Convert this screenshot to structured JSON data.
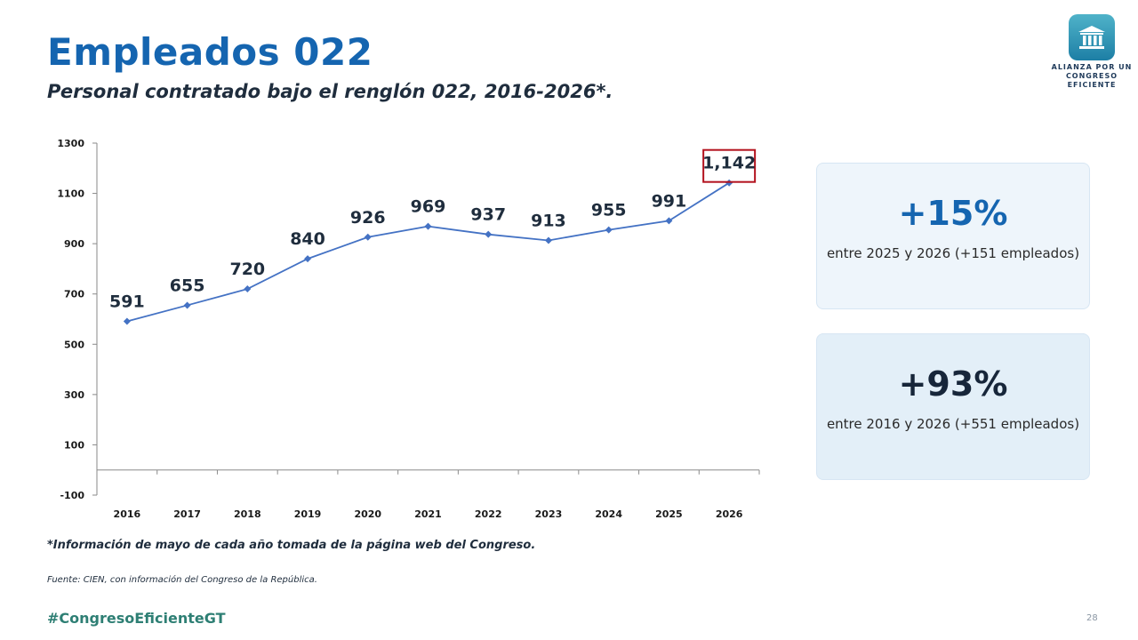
{
  "header": {
    "title": "Empleados 022",
    "subtitle": "Personal contratado bajo el renglón 022, 2016-2026*."
  },
  "logo": {
    "line1": "ALIANZA POR UN",
    "line2": "CONGRESO EFICIENTE",
    "icon": "building-columns-icon"
  },
  "chart_data": {
    "type": "line",
    "categories": [
      "2016",
      "2017",
      "2018",
      "2019",
      "2020",
      "2021",
      "2022",
      "2023",
      "2024",
      "2025",
      "2026"
    ],
    "series": [
      {
        "name": "",
        "values": [
          591,
          655,
          720,
          840,
          926,
          969,
          937,
          913,
          955,
          991,
          1142
        ],
        "labels": [
          "591",
          "655",
          "720",
          "840",
          "926",
          "969",
          "937",
          "913",
          "955",
          "991",
          "1,142"
        ]
      }
    ],
    "ylim": [
      -100,
      1300
    ],
    "yticks": [
      -100,
      100,
      300,
      500,
      700,
      900,
      1100,
      1300
    ],
    "ytick_labels": [
      "-100",
      "100",
      "300",
      "500",
      "700",
      "900",
      "1100",
      "1300"
    ],
    "highlight_index": 10,
    "line_color": "#4472c4",
    "label_color": "#1f2d3d",
    "highlight_color": "#b3121e",
    "grid": false,
    "legend": "none"
  },
  "cards": [
    {
      "big": "+15%",
      "desc": "entre 2025 y 2026 (+151 empleados)",
      "color": "#1565b0"
    },
    {
      "big": "+93%",
      "desc": "entre 2016 y 2026 (+551 empleados)",
      "color": "#17263a"
    }
  ],
  "footer": {
    "note": "*Información de mayo de cada año tomada de la página web del Congreso.",
    "source": "Fuente: CIEN, con información del Congreso de la República.",
    "hashtag": "#CongresoEficienteGT",
    "page": "28"
  }
}
